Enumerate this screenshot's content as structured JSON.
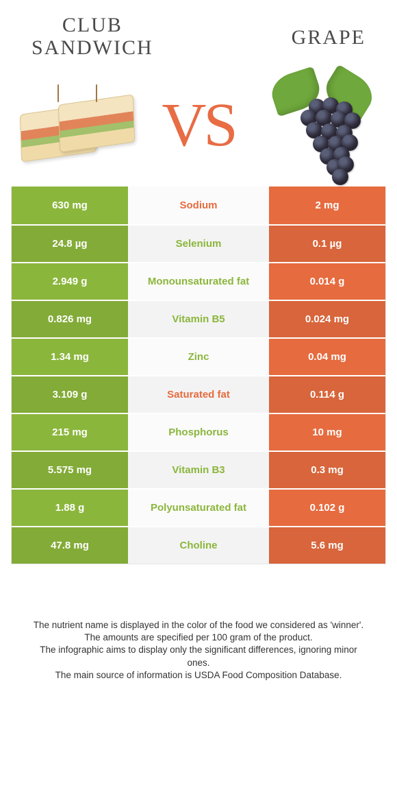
{
  "colors": {
    "left": "#8bb63c",
    "right": "#e66b3f",
    "row_alt_darken": 0.06
  },
  "food_left": {
    "title": "CLUB\nSANDWICH"
  },
  "food_right": {
    "title": "GRAPE"
  },
  "vs_label": "VS",
  "rows": [
    {
      "left": "630 mg",
      "label": "Sodium",
      "right": "2 mg",
      "winner": "right"
    },
    {
      "left": "24.8 µg",
      "label": "Selenium",
      "right": "0.1 µg",
      "winner": "left"
    },
    {
      "left": "2.949 g",
      "label": "Monounsaturated fat",
      "right": "0.014 g",
      "winner": "left"
    },
    {
      "left": "0.826 mg",
      "label": "Vitamin B5",
      "right": "0.024 mg",
      "winner": "left"
    },
    {
      "left": "1.34 mg",
      "label": "Zinc",
      "right": "0.04 mg",
      "winner": "left"
    },
    {
      "left": "3.109 g",
      "label": "Saturated fat",
      "right": "0.114 g",
      "winner": "right"
    },
    {
      "left": "215 mg",
      "label": "Phosphorus",
      "right": "10 mg",
      "winner": "left"
    },
    {
      "left": "5.575 mg",
      "label": "Vitamin B3",
      "right": "0.3 mg",
      "winner": "left"
    },
    {
      "left": "1.88 g",
      "label": "Polyunsaturated fat",
      "right": "0.102 g",
      "winner": "left"
    },
    {
      "left": "47.8 mg",
      "label": "Choline",
      "right": "5.6 mg",
      "winner": "left"
    }
  ],
  "footnotes": [
    "The nutrient name is displayed in the color of the food we considered as 'winner'.",
    "The amounts are specified per 100 gram of the product.",
    "The infographic aims to display only the significant differences, ignoring minor ones.",
    "The main source of information is USDA Food Composition Database."
  ]
}
